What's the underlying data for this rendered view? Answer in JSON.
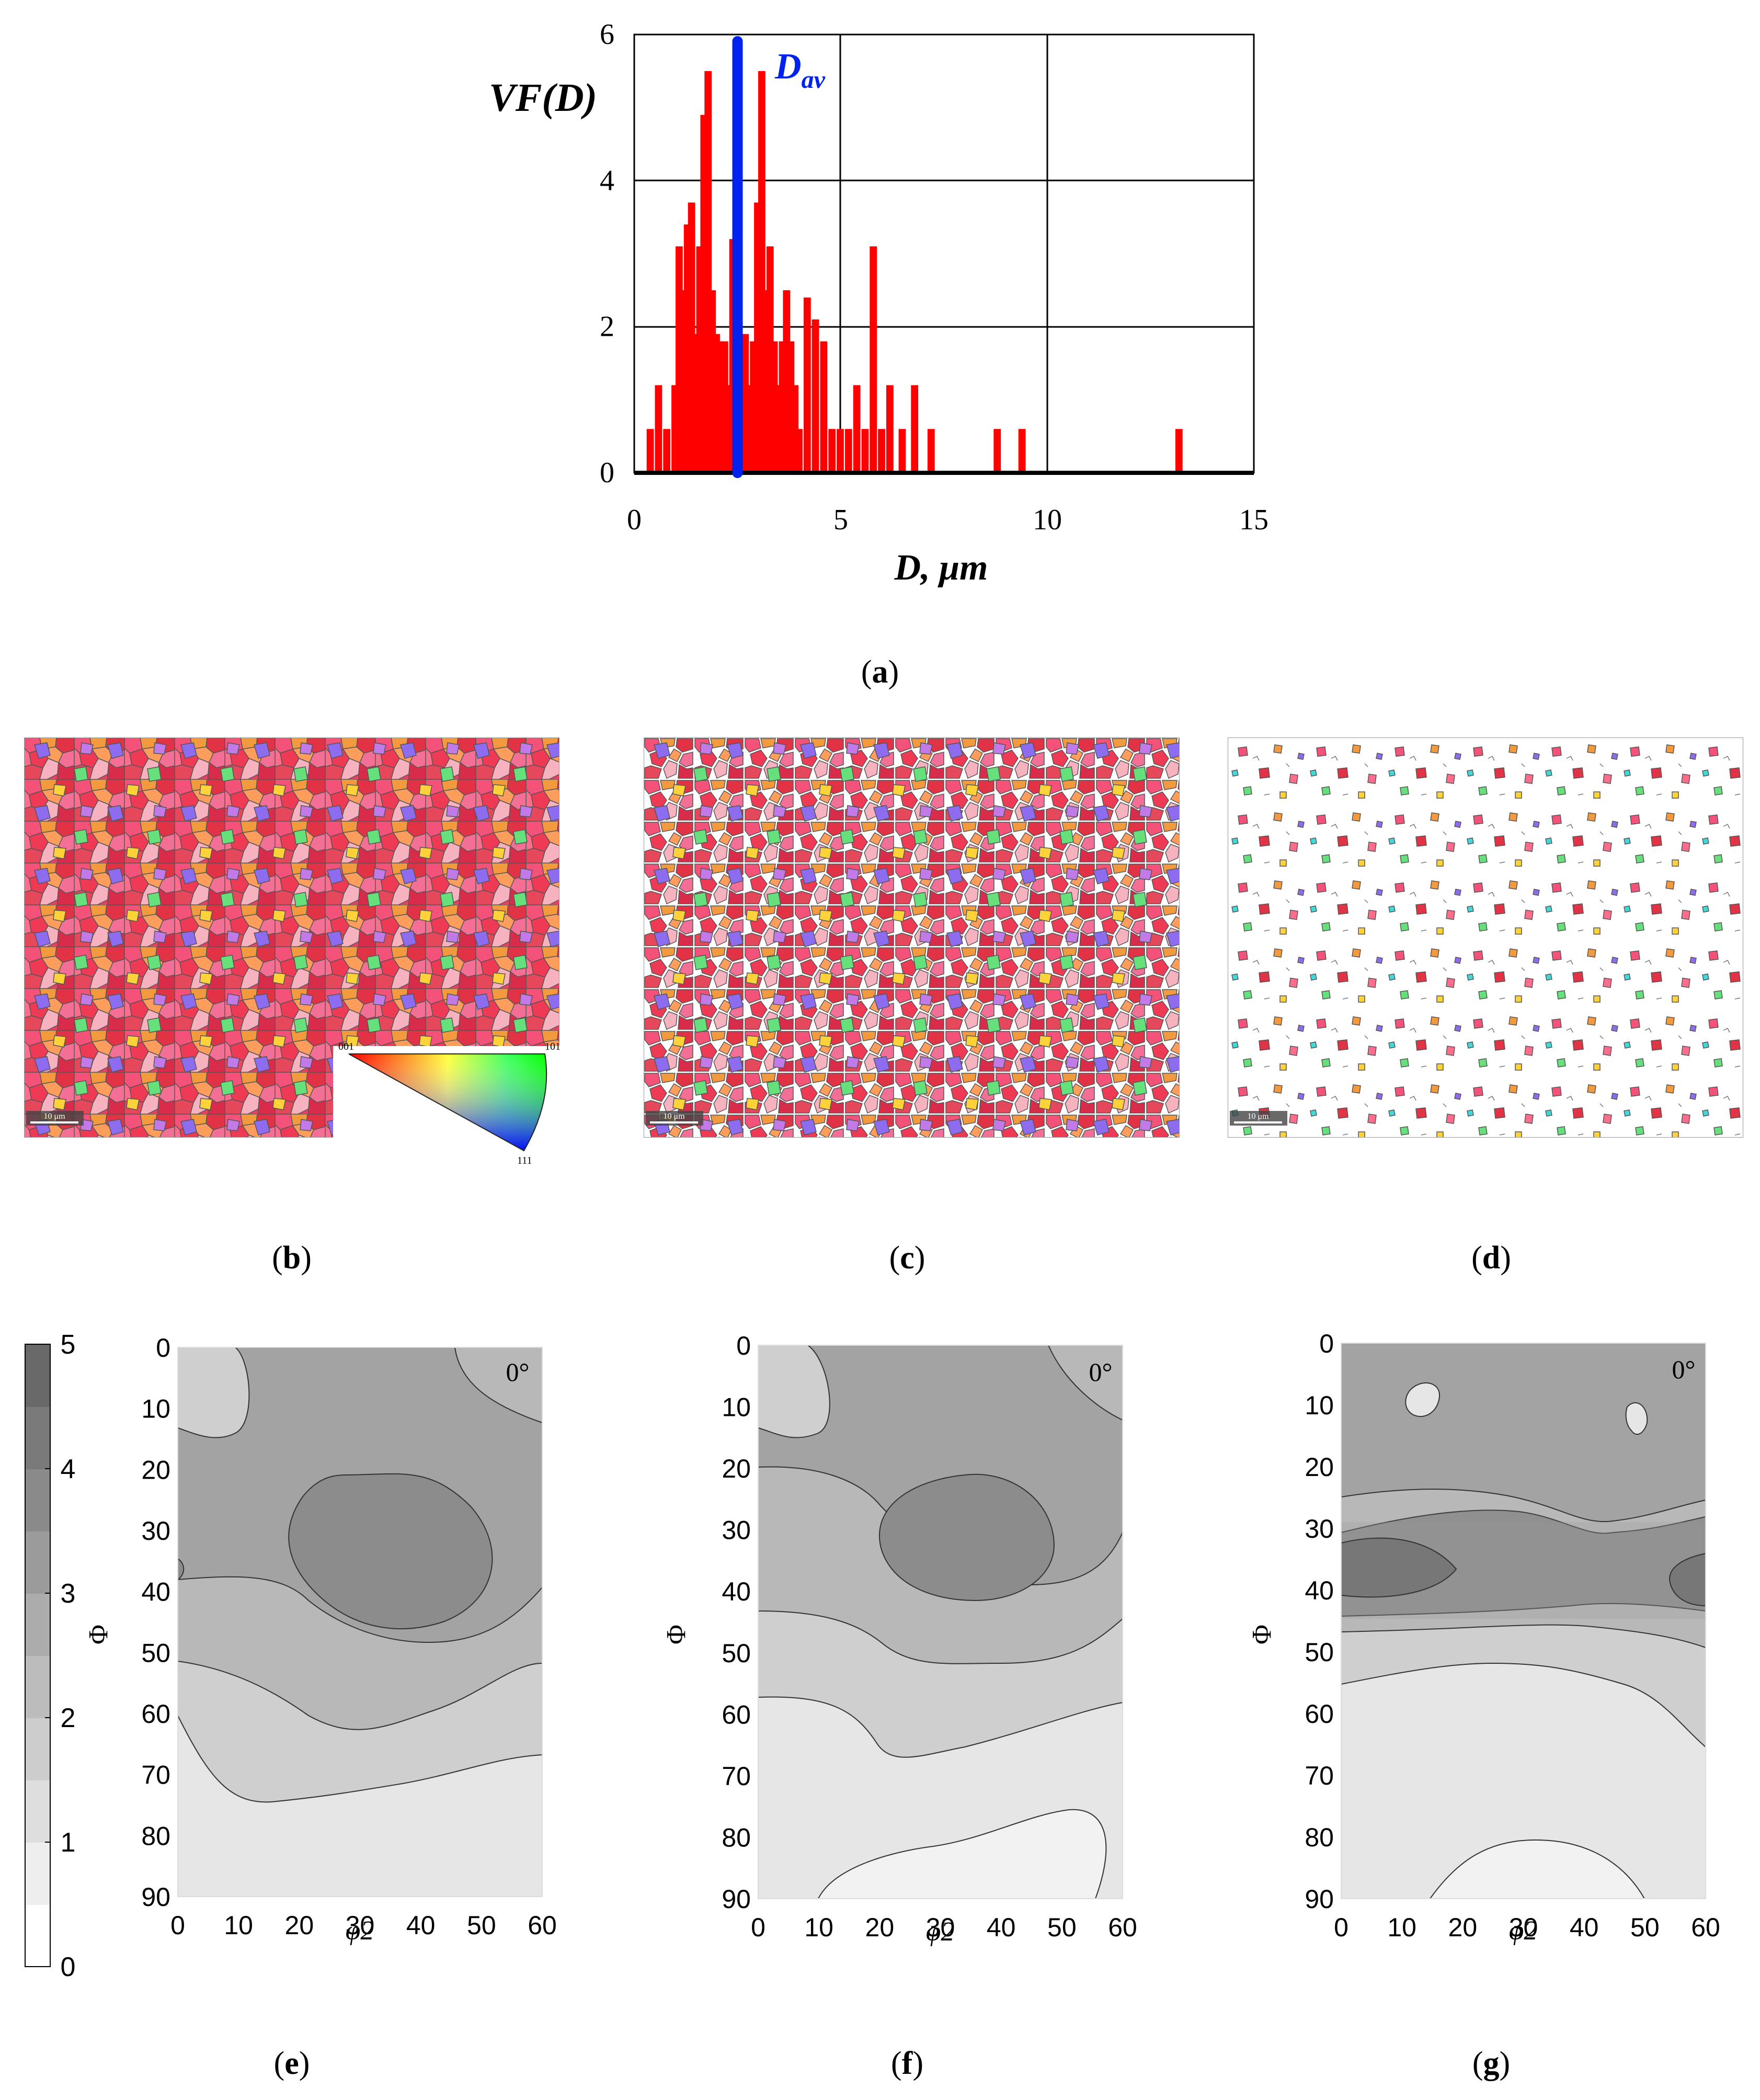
{
  "panel_labels": {
    "a": "a",
    "b": "b",
    "c": "c",
    "d": "d",
    "e": "e",
    "f": "f",
    "g": "g"
  },
  "chart_data": [
    {
      "type": "bar",
      "title": "",
      "xlabel": "D, μm",
      "ylabel": "VF(D)",
      "xlim": [
        0,
        15
      ],
      "ylim": [
        0,
        6
      ],
      "xticks": [
        0,
        5,
        10,
        15
      ],
      "yticks": [
        0,
        2,
        4,
        6
      ],
      "grid": true,
      "bar_width": 0.2,
      "series": [
        {
          "name": "VF(D)",
          "color": "#ff0000",
          "x": [
            0.4,
            0.6,
            0.8,
            1.0,
            1.1,
            1.2,
            1.3,
            1.4,
            1.5,
            1.6,
            1.7,
            1.8,
            1.9,
            2.0,
            2.1,
            2.2,
            2.3,
            2.4,
            2.5,
            2.6,
            2.7,
            2.8,
            2.9,
            3.0,
            3.1,
            3.2,
            3.3,
            3.4,
            3.5,
            3.6,
            3.7,
            3.8,
            3.9,
            4.0,
            4.2,
            4.4,
            4.6,
            4.8,
            5.0,
            5.2,
            5.4,
            5.6,
            5.8,
            6.0,
            6.2,
            6.5,
            6.8,
            7.2,
            8.8,
            9.4,
            13.2
          ],
          "values": [
            0.6,
            1.2,
            0.6,
            1.2,
            3.1,
            2.5,
            3.4,
            3.7,
            1.9,
            3.1,
            4.9,
            5.5,
            2.5,
            1.9,
            1.8,
            1.8,
            1.2,
            3.2,
            0.6,
            1.8,
            1.9,
            1.2,
            1.8,
            3.7,
            5.5,
            2.5,
            3.1,
            1.8,
            1.2,
            1.8,
            2.5,
            1.8,
            1.2,
            0.6,
            2.4,
            2.1,
            1.8,
            0.6,
            0.6,
            0.6,
            1.2,
            0.6,
            3.1,
            0.6,
            1.2,
            0.6,
            1.2,
            0.6,
            0.6,
            0.6,
            0.6
          ]
        }
      ],
      "annotations": [
        {
          "text": "D",
          "subscript": "av",
          "x": 2.5,
          "color": "#0022ee"
        }
      ]
    },
    {
      "type": "heatmap",
      "subtype": "contour",
      "panel": "e",
      "xlabel": "φ2",
      "ylabel": "Φ",
      "xlim": [
        0,
        60
      ],
      "ylim": [
        0,
        90
      ],
      "xticks": [
        0,
        10,
        20,
        30,
        40,
        50,
        60
      ],
      "yticks": [
        0,
        10,
        20,
        30,
        40,
        50,
        60,
        70,
        80,
        90
      ],
      "annotation": "0°",
      "colorbar": {
        "min": 0,
        "max": 5,
        "ticks": [
          0,
          1,
          2,
          3,
          4,
          5
        ]
      }
    },
    {
      "type": "heatmap",
      "subtype": "contour",
      "panel": "f",
      "xlabel": "φ2",
      "ylabel": "Φ",
      "xlim": [
        0,
        60
      ],
      "ylim": [
        0,
        90
      ],
      "xticks": [
        0,
        10,
        20,
        30,
        40,
        50,
        60
      ],
      "yticks": [
        0,
        10,
        20,
        30,
        40,
        50,
        60,
        70,
        80,
        90
      ],
      "annotation": "0°"
    },
    {
      "type": "heatmap",
      "subtype": "contour",
      "panel": "g",
      "xlabel": "φ2",
      "ylabel": "Φ",
      "xlim": [
        0,
        60
      ],
      "ylim": [
        0,
        90
      ],
      "xticks": [
        0,
        10,
        20,
        30,
        40,
        50,
        60
      ],
      "yticks": [
        0,
        10,
        20,
        30,
        40,
        50,
        60,
        70,
        80,
        90
      ],
      "annotation": "0°"
    }
  ],
  "ebsd_maps": {
    "b": {
      "scale_bar": "10 μm",
      "legend": {
        "corner_001": "001",
        "corner_101": "101",
        "corner_111": "111"
      }
    },
    "c": {
      "scale_bar": "10 μm"
    },
    "d": {
      "scale_bar": "10 μm"
    }
  },
  "colors": {
    "bar": "#ff0000",
    "dav_line": "#0022ee",
    "contour_dark": "#777777",
    "contour_light": "#e6e6e6"
  }
}
